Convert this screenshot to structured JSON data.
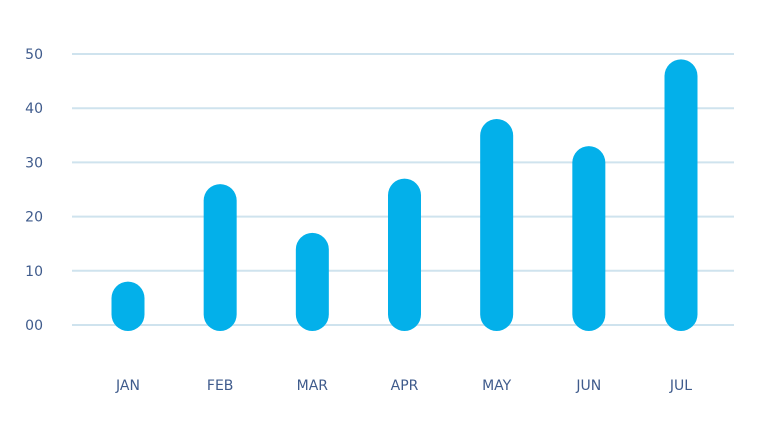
{
  "chart_data": {
    "type": "bar",
    "categories": [
      "JAN",
      "FEB",
      "MAR",
      "APR",
      "MAY",
      "JUN",
      "JUL"
    ],
    "values": [
      8,
      26,
      17,
      27,
      38,
      33,
      49
    ],
    "y_ticks": [
      "00",
      "10",
      "20",
      "30",
      "40",
      "50"
    ],
    "ylim": [
      0,
      50
    ],
    "grid": true,
    "legend": "none",
    "title": "",
    "xlabel": "",
    "ylabel": "",
    "colors": {
      "bar": "#03b0ea",
      "grid": "#cfe3ee",
      "label": "#3f5b8c"
    }
  }
}
